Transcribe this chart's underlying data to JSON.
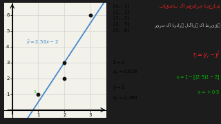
{
  "points": [
    [
      1,
      1
    ],
    [
      2,
      2
    ],
    [
      2,
      3
    ],
    [
      3,
      6
    ]
  ],
  "line_slope": 2.5,
  "line_intercept": -2,
  "line_label": "$\\hat{y} = 2.50x - 2$",
  "line_color": "#4488cc",
  "point_color": "#111111",
  "grid_color": "#cccccc",
  "bg_graph": "#f2f2ea",
  "bg_mid": "#ffffff",
  "bg_right": "#1c1c1c",
  "xlim": [
    -0.3,
    3.6
  ],
  "ylim": [
    -0.5,
    6.8
  ],
  "xticks": [
    1,
    2,
    3
  ],
  "yticks": [
    1,
    2,
    3,
    4,
    5,
    6
  ],
  "label_1_color": "#00cc00",
  "formula_color": "#ff2222",
  "example_color": "#00cc00",
  "urdu_title": "باقیات کا معیاری انحراف",
  "urdu_subtitle": "زیرت کا اندازہ لگانے کا طریقہ"
}
